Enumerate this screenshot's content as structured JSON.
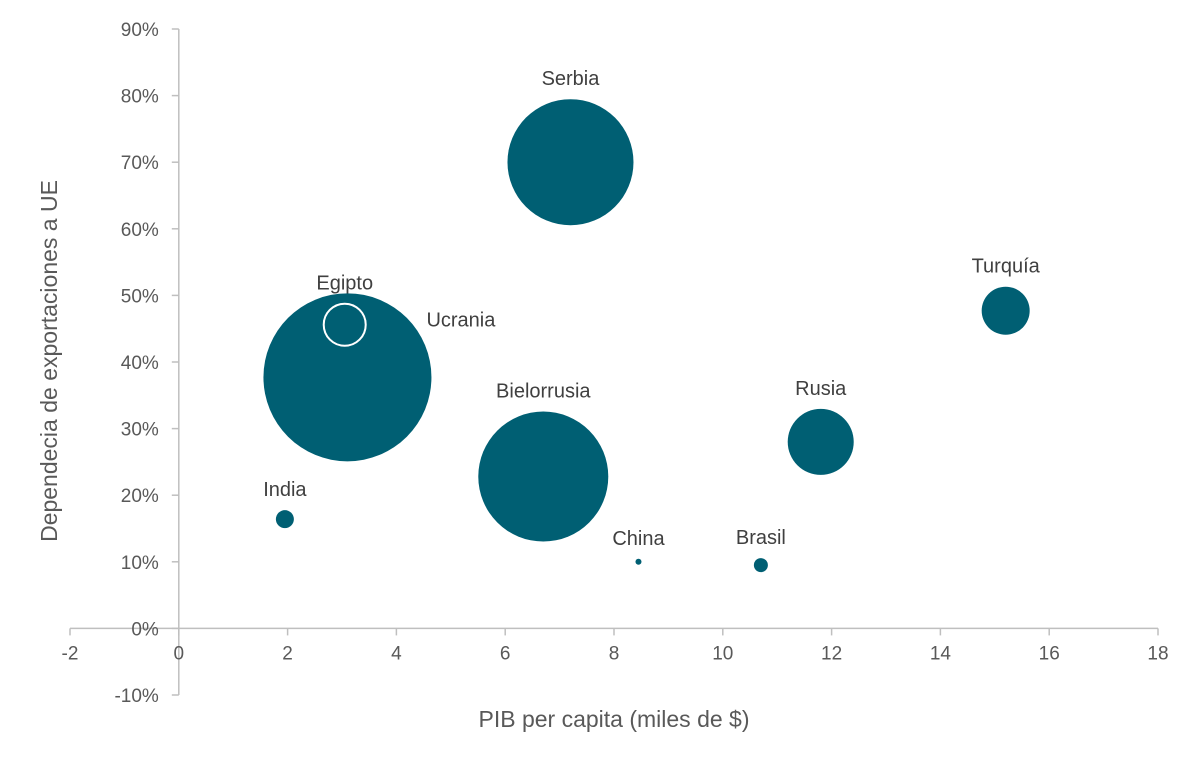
{
  "chart_data": {
    "type": "scatter",
    "variant": "bubble",
    "title": "",
    "xlabel": "PIB per capita (miles de $)",
    "ylabel": "Dependecia de exportaciones a UE",
    "xlim": [
      -2,
      18
    ],
    "ylim": [
      -0.1,
      0.9
    ],
    "x_ticks": [
      -2,
      0,
      2,
      4,
      6,
      8,
      10,
      12,
      14,
      16,
      18
    ],
    "x_tick_labels": [
      "-2",
      "0",
      "2",
      "4",
      "6",
      "8",
      "10",
      "12",
      "14",
      "16",
      "18"
    ],
    "y_ticks": [
      -0.1,
      0,
      0.1,
      0.2,
      0.3,
      0.4,
      0.5,
      0.6,
      0.7,
      0.8,
      0.9
    ],
    "y_tick_labels": [
      "-10%",
      "0%",
      "10%",
      "20%",
      "30%",
      "40%",
      "50%",
      "60%",
      "70%",
      "80%",
      "90%"
    ],
    "grid": false,
    "legend": "none",
    "colors": {
      "fill": "#005f73",
      "hollow_stroke": "#ffffff",
      "axis": "#bfbfbf",
      "text": "#595959"
    },
    "points": [
      {
        "label": "Serbia",
        "x": 7.2,
        "y": 0.7,
        "size": 63
      },
      {
        "label": "Ucrania",
        "x": 3.1,
        "y": 0.377,
        "size": 84
      },
      {
        "label": "Egipto",
        "x": 3.05,
        "y": 0.456,
        "size": 21,
        "hollow": true
      },
      {
        "label": "Bielorrusia",
        "x": 6.7,
        "y": 0.228,
        "size": 65
      },
      {
        "label": "Turquía",
        "x": 15.2,
        "y": 0.477,
        "size": 24
      },
      {
        "label": "Rusia",
        "x": 11.8,
        "y": 0.28,
        "size": 33
      },
      {
        "label": "India",
        "x": 1.95,
        "y": 0.164,
        "size": 9
      },
      {
        "label": "China",
        "x": 8.45,
        "y": 0.1,
        "size": 3
      },
      {
        "label": "Brasil",
        "x": 10.7,
        "y": 0.095,
        "size": 7
      }
    ]
  }
}
